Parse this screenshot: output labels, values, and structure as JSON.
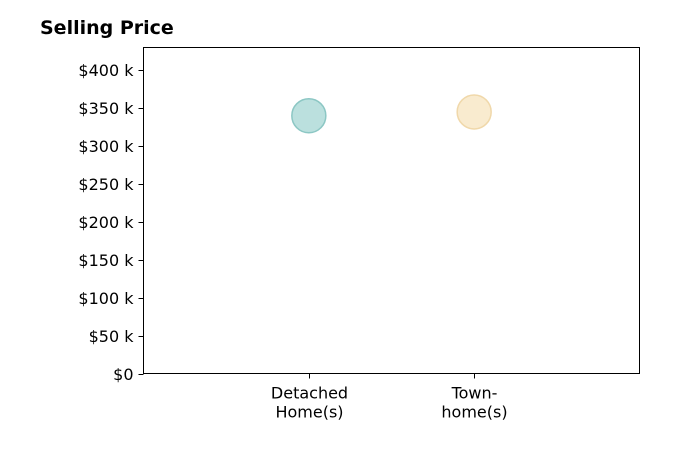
{
  "chart_data": {
    "type": "scatter",
    "title": "Selling Price",
    "xlabel": "",
    "ylabel": "",
    "categories": [
      [
        "Detached",
        "Home(s)"
      ],
      [
        "Town-",
        "home(s)"
      ]
    ],
    "values": [
      340000,
      345000
    ],
    "point_colors": [
      "#9ed3d0",
      "#f7e2bb"
    ],
    "point_edge_colors": [
      "#8cc7c4",
      "#f0d8aa"
    ],
    "ylim": [
      0,
      430000
    ],
    "xlim": [
      -1,
      2
    ],
    "y_ticks": [
      0,
      50000,
      100000,
      150000,
      200000,
      250000,
      300000,
      350000,
      400000
    ],
    "y_tick_labels": [
      "$0",
      "$50 k",
      "$100 k",
      "$150 k",
      "$200 k",
      "$250 k",
      "$300 k",
      "$350 k",
      "$400 k"
    ],
    "grid": false,
    "legend": "none"
  }
}
